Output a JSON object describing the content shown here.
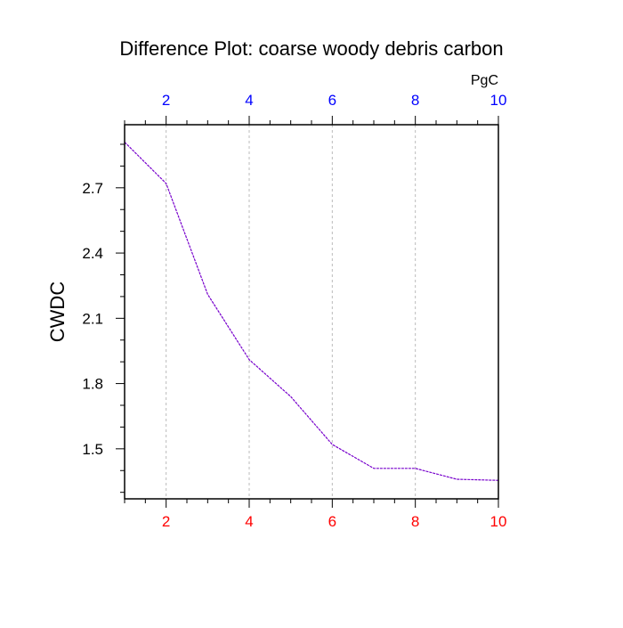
{
  "chart_data": {
    "type": "line",
    "title": "Difference Plot: coarse woody debris carbon",
    "ylabel": "CWDC",
    "units_label": "PgC",
    "x": [
      1,
      2,
      3,
      4,
      5,
      6,
      7,
      8,
      9,
      10
    ],
    "series": [
      {
        "values": [
          2.91,
          2.72,
          2.21,
          1.91,
          1.74,
          1.52,
          1.41,
          1.41,
          1.36,
          1.355
        ],
        "color": "#7700cc",
        "dashed": true
      }
    ],
    "xlim": [
      1,
      10
    ],
    "ylim": [
      1.27,
      2.99
    ],
    "xticks": [
      2,
      4,
      6,
      8,
      10
    ],
    "xtick_labels": [
      "2",
      "4",
      "6",
      "8",
      "10"
    ],
    "yticks": [
      1.5,
      1.8,
      2.1,
      2.4,
      2.7
    ],
    "ytick_labels": [
      "1.5",
      "1.8",
      "2.1",
      "2.4",
      "2.7"
    ],
    "grid": "vertical-dashed",
    "colors": {
      "bottom_tick_labels": "#ff0000",
      "top_tick_labels": "#0000ff",
      "grid": "#bbbbbb",
      "axis": "#000000"
    }
  }
}
